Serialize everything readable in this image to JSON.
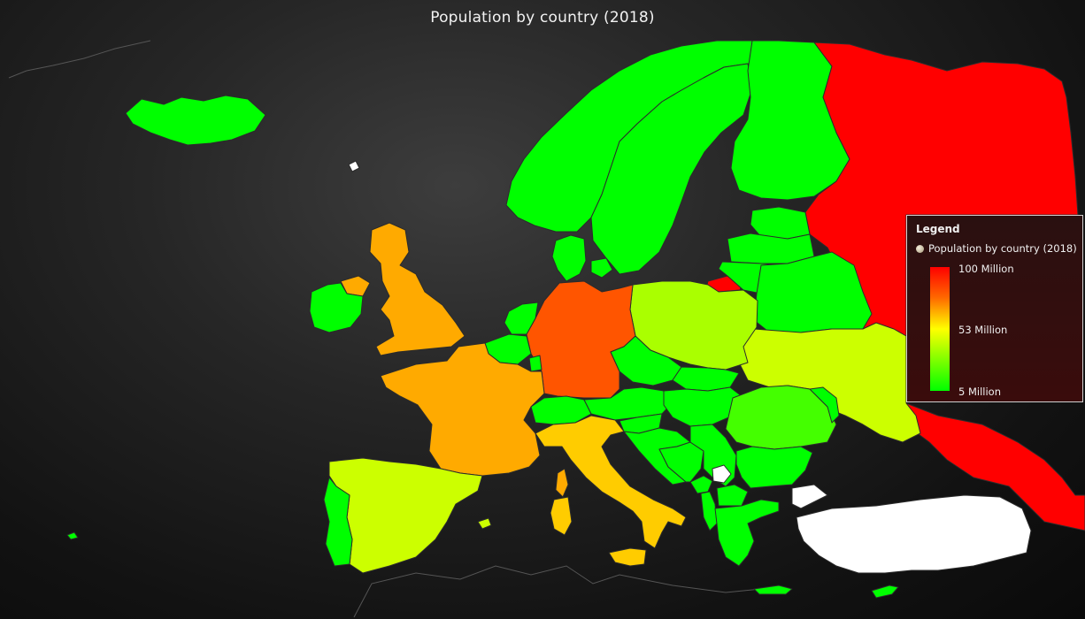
{
  "title": "Population by country (2018)",
  "legend": {
    "title": "Legend",
    "series_label": "Population by country (2018)",
    "ticks": [
      "100 Million",
      "53 Million",
      "5 Million"
    ],
    "color_max": "#ff0000",
    "color_mid": "#ffff00",
    "color_min": "#00ff00"
  },
  "colors": {
    "no_data": "#ffffff",
    "border": "#2b2b2b"
  }
}
